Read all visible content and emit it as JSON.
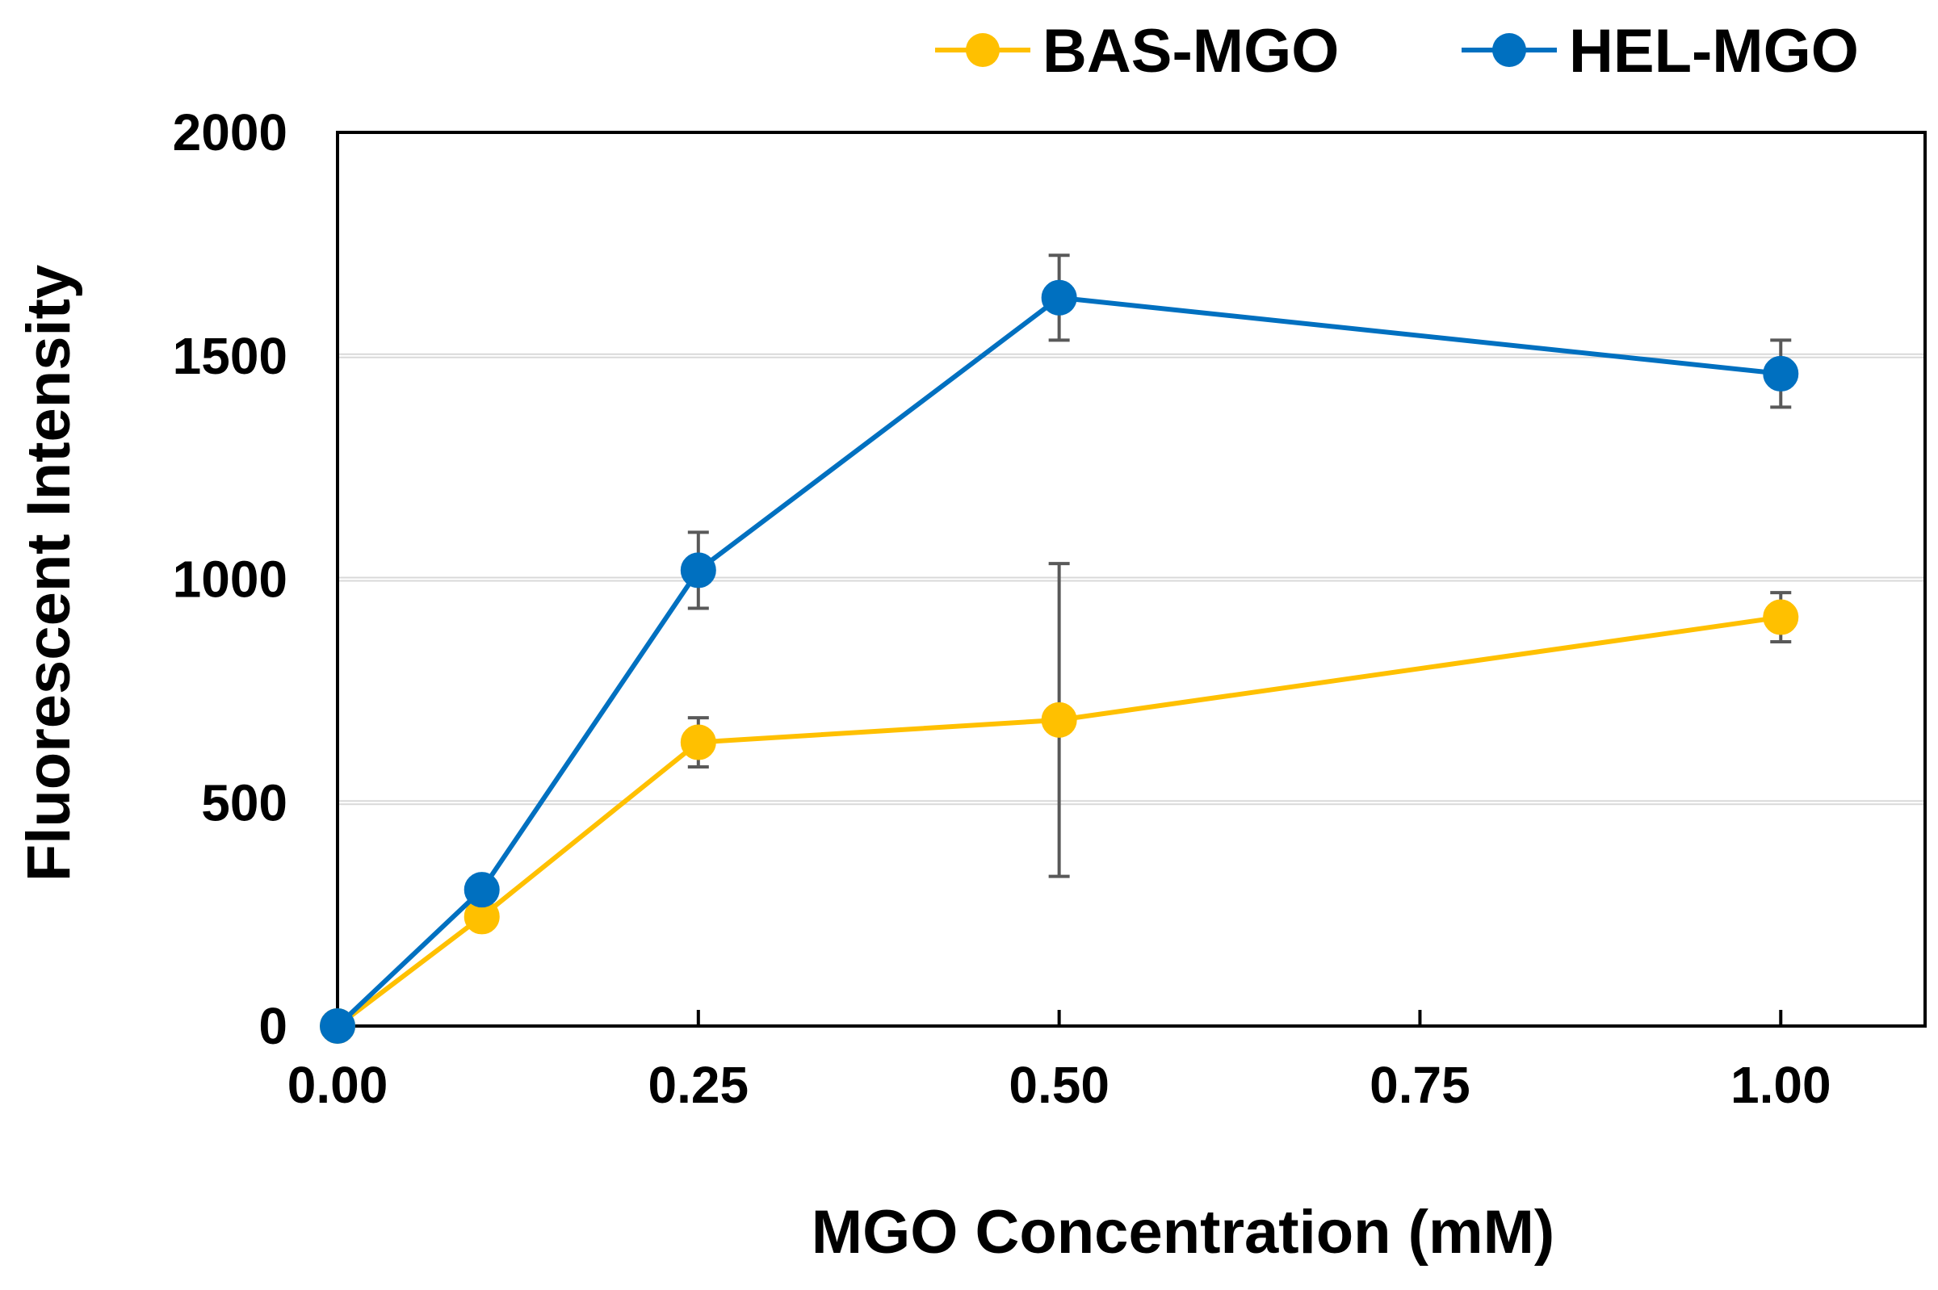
{
  "chart_data": {
    "type": "line",
    "title": "",
    "xlabel": "MGO Concentration (mM)",
    "ylabel": "Fluorescent Intensity",
    "xlim": [
      0.0,
      1.1
    ],
    "ylim": [
      0,
      2000
    ],
    "x_ticks": [
      0.0,
      0.25,
      0.5,
      0.75,
      1.0
    ],
    "x_tick_labels": [
      "0.00",
      "0.25",
      "0.50",
      "0.75",
      "1.00"
    ],
    "y_ticks": [
      0,
      500,
      1000,
      1500,
      2000
    ],
    "y_tick_labels": [
      "0",
      "500",
      "1000",
      "1500",
      "2000"
    ],
    "grid": "horizontal",
    "legend_position": "top-right",
    "series": [
      {
        "name": "BAS-MGO",
        "color": "#FFC000",
        "points": [
          {
            "x": 0.0,
            "y": 0,
            "err": 0
          },
          {
            "x": 0.1,
            "y": 245,
            "err": 0
          },
          {
            "x": 0.25,
            "y": 635,
            "err": 55
          },
          {
            "x": 0.5,
            "y": 685,
            "err": 350
          },
          {
            "x": 1.0,
            "y": 915,
            "err": 55
          }
        ]
      },
      {
        "name": "HEL-MGO",
        "color": "#0070C0",
        "points": [
          {
            "x": 0.0,
            "y": 0,
            "err": 0
          },
          {
            "x": 0.1,
            "y": 305,
            "err": 0
          },
          {
            "x": 0.25,
            "y": 1020,
            "err": 85
          },
          {
            "x": 0.5,
            "y": 1630,
            "err": 95
          },
          {
            "x": 1.0,
            "y": 1460,
            "err": 75
          }
        ]
      }
    ]
  }
}
